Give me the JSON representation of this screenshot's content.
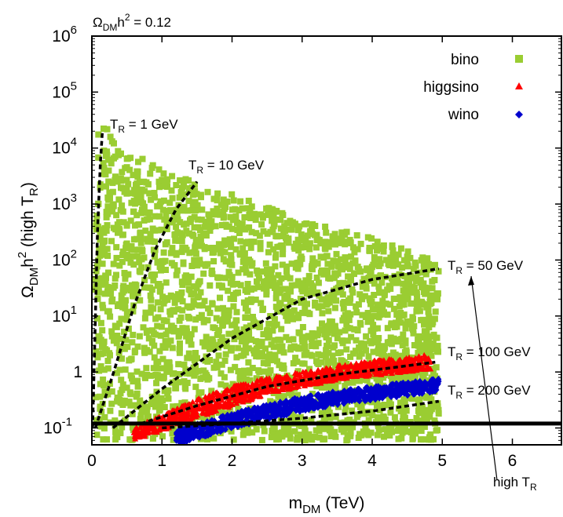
{
  "chart_data": {
    "type": "scatter",
    "title": "",
    "top_label": {
      "base": "Ω",
      "sub": "DM",
      "mid": "h",
      "sup": "2",
      "tail": " = 0.12"
    },
    "xlabel": {
      "base": "m",
      "sub": "DM",
      "tail": " (TeV)"
    },
    "ylabel": {
      "base": "Ω",
      "sub": "DM",
      "mid": "h",
      "sup": "2",
      "tail1": " (high T",
      "sub2": "R",
      "tail2": ")"
    },
    "xlim": [
      0,
      6.7
    ],
    "ylim": [
      0.05,
      1000000
    ],
    "y_scale": "log",
    "grid": false,
    "legend_position": "top-right",
    "colors": {
      "bino": "#9acd32",
      "higgsino": "#ff0000",
      "wino": "#0000cd",
      "curve": "#000000"
    },
    "x_ticks": [
      {
        "value": 0,
        "label": "0"
      },
      {
        "value": 1,
        "label": "1"
      },
      {
        "value": 2,
        "label": "2"
      },
      {
        "value": 3,
        "label": "3"
      },
      {
        "value": 4,
        "label": "4"
      },
      {
        "value": 5,
        "label": "5"
      },
      {
        "value": 6,
        "label": "6"
      }
    ],
    "y_ticks": [
      {
        "value": 0.1,
        "base": "10",
        "exp": "-1"
      },
      {
        "value": 1,
        "base": "1",
        "exp": ""
      },
      {
        "value": 10,
        "base": "10",
        "exp": "1"
      },
      {
        "value": 100,
        "base": "10",
        "exp": "2"
      },
      {
        "value": 1000,
        "base": "10",
        "exp": "3"
      },
      {
        "value": 10000,
        "base": "10",
        "exp": "4"
      },
      {
        "value": 100000,
        "base": "10",
        "exp": "5"
      },
      {
        "value": 1000000,
        "base": "10",
        "exp": "6"
      }
    ],
    "series": [
      {
        "name": "bino",
        "marker": "square",
        "color_key": "bino",
        "envelope": [
          [
            0.05,
            0.06,
            40000
          ],
          [
            0.15,
            0.06,
            30000
          ],
          [
            0.3,
            0.06,
            15000
          ],
          [
            0.5,
            0.06,
            9000
          ],
          [
            0.8,
            0.06,
            6000
          ],
          [
            1.0,
            0.06,
            4000
          ],
          [
            1.3,
            0.06,
            3000
          ],
          [
            1.6,
            0.06,
            2200
          ],
          [
            2.0,
            0.06,
            1500
          ],
          [
            2.5,
            0.06,
            900
          ],
          [
            3.0,
            0.06,
            500
          ],
          [
            3.5,
            0.06,
            350
          ],
          [
            4.0,
            0.06,
            250
          ],
          [
            4.5,
            0.06,
            150
          ],
          [
            4.95,
            0.06,
            100
          ]
        ],
        "count": 2600
      },
      {
        "name": "higgsino",
        "marker": "triangle",
        "color_key": "higgsino",
        "band": [
          [
            0.6,
            0.06,
            0.1
          ],
          [
            1.0,
            0.09,
            0.17
          ],
          [
            1.5,
            0.15,
            0.33
          ],
          [
            2.0,
            0.24,
            0.55
          ],
          [
            2.5,
            0.4,
            0.8
          ],
          [
            3.0,
            0.55,
            1.0
          ],
          [
            3.5,
            0.7,
            1.3
          ],
          [
            4.0,
            0.85,
            1.6
          ],
          [
            4.5,
            1.0,
            1.8
          ],
          [
            4.85,
            1.1,
            2.1
          ]
        ],
        "count": 900
      },
      {
        "name": "wino",
        "marker": "diamond",
        "color_key": "wino",
        "band": [
          [
            1.2,
            0.05,
            0.09
          ],
          [
            1.6,
            0.07,
            0.13
          ],
          [
            2.0,
            0.1,
            0.18
          ],
          [
            2.5,
            0.14,
            0.26
          ],
          [
            3.0,
            0.2,
            0.36
          ],
          [
            3.5,
            0.26,
            0.45
          ],
          [
            4.0,
            0.32,
            0.55
          ],
          [
            4.5,
            0.38,
            0.65
          ],
          [
            4.95,
            0.45,
            0.75
          ]
        ],
        "count": 700
      }
    ],
    "reference_line": {
      "y": 0.12
    },
    "curves": [
      {
        "label": "1 GeV",
        "points": [
          [
            0.01,
            0.1
          ],
          [
            0.04,
            3
          ],
          [
            0.08,
            300
          ],
          [
            0.12,
            5000
          ],
          [
            0.15,
            20000
          ]
        ]
      },
      {
        "label": "10 GeV",
        "points": [
          [
            0.05,
            0.1
          ],
          [
            0.3,
            0.9
          ],
          [
            0.6,
            15
          ],
          [
            0.9,
            150
          ],
          [
            1.2,
            800
          ],
          [
            1.5,
            2500
          ]
        ]
      },
      {
        "label": "50 GeV",
        "points": [
          [
            0.3,
            0.1
          ],
          [
            1.0,
            0.5
          ],
          [
            2.0,
            4
          ],
          [
            3.0,
            20
          ],
          [
            4.0,
            45
          ],
          [
            4.95,
            70
          ]
        ]
      },
      {
        "label": "100 GeV",
        "points": [
          [
            0.7,
            0.12
          ],
          [
            1.5,
            0.25
          ],
          [
            2.5,
            0.55
          ],
          [
            3.5,
            0.9
          ],
          [
            4.3,
            1.2
          ],
          [
            4.9,
            1.5
          ]
        ]
      },
      {
        "label": "200 GeV",
        "points": [
          [
            1.0,
            0.1
          ],
          [
            2.0,
            0.12
          ],
          [
            3.0,
            0.15
          ],
          [
            4.0,
            0.2
          ],
          [
            4.95,
            0.3
          ]
        ]
      }
    ],
    "annotations": [
      {
        "pre": "T",
        "sub": "R",
        "text": " = 1 GeV"
      },
      {
        "pre": "T",
        "sub": "R",
        "text": " = 10 GeV"
      },
      {
        "pre": "T",
        "sub": "R",
        "text": " = 50 GeV"
      },
      {
        "pre": "T",
        "sub": "R",
        "text": " = 100 GeV"
      },
      {
        "pre": "T",
        "sub": "R",
        "text": " = 200 GeV"
      },
      {
        "pre": "high T",
        "sub": "R",
        "text": ""
      }
    ]
  }
}
